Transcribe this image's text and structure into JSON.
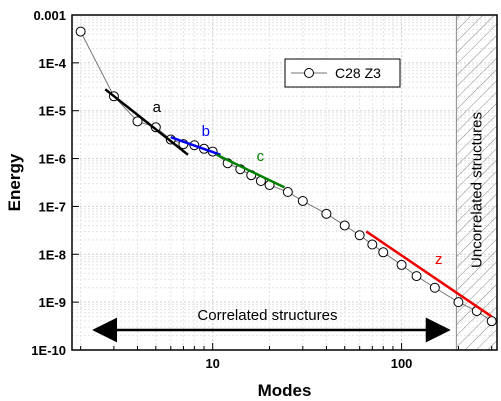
{
  "chart_data": {
    "type": "scatter",
    "xlabel": "Modes",
    "ylabel": "Energy",
    "xscale": "log",
    "yscale": "log",
    "xlim": [
      1.8,
      320
    ],
    "ylim": [
      1e-10,
      0.001
    ],
    "grid": true,
    "x_ticks": [
      {
        "value": 10,
        "label": "10"
      },
      {
        "value": 100,
        "label": "100"
      }
    ],
    "y_ticks": [
      {
        "value": 0.001,
        "label": "0.001"
      },
      {
        "value": 0.0001,
        "label": "1E-4"
      },
      {
        "value": 1e-05,
        "label": "1E-5"
      },
      {
        "value": 1e-06,
        "label": "1E-6"
      },
      {
        "value": 1e-07,
        "label": "1E-7"
      },
      {
        "value": 1e-08,
        "label": "1E-8"
      },
      {
        "value": 1e-09,
        "label": "1E-9"
      },
      {
        "value": 1e-10,
        "label": "1E-10"
      }
    ],
    "legend": {
      "position": "top-right",
      "entries": [
        "C28 Z3"
      ]
    },
    "series": [
      {
        "name": "C28 Z3",
        "style": "line-with-open-circles",
        "color": "#000000",
        "x": [
          2,
          3,
          4,
          5,
          6,
          7,
          8,
          9,
          10,
          12,
          14,
          16,
          18,
          20,
          25,
          30,
          40,
          50,
          60,
          70,
          80,
          100,
          120,
          150,
          200,
          250,
          300
        ],
        "y": [
          0.00045,
          2e-05,
          6e-06,
          4.5e-06,
          2.5e-06,
          2e-06,
          1.9e-06,
          1.6e-06,
          1.4e-06,
          8e-07,
          6e-07,
          4.5e-07,
          3.4e-07,
          2.8e-07,
          2e-07,
          1.3e-07,
          7e-08,
          4e-08,
          2.5e-08,
          1.6e-08,
          1.1e-08,
          6e-09,
          3.5e-09,
          2e-09,
          1e-09,
          6.5e-10,
          4e-10
        ]
      }
    ],
    "fits": [
      {
        "label": "a",
        "color": "#000000",
        "x": [
          2.7,
          7.4
        ],
        "y": [
          2.8e-05,
          1.2e-06
        ]
      },
      {
        "label": "b",
        "color": "#0000ee",
        "x": [
          6,
          11
        ],
        "y": [
          2.8e-06,
          1.2e-06
        ]
      },
      {
        "label": "c",
        "color": "#008000",
        "x": [
          10.5,
          24
        ],
        "y": [
          1.2e-06,
          2.5e-07
        ]
      },
      {
        "label": "z",
        "color": "#ee0000",
        "x": [
          65,
          300
        ],
        "y": [
          3e-08,
          5e-10
        ]
      }
    ],
    "regions": [
      {
        "label": "Correlated structures",
        "x": [
          2,
          190
        ],
        "type": "arrow"
      },
      {
        "label": "Uncorrelated structures",
        "x": [
          195,
          320
        ],
        "type": "hatched"
      }
    ]
  }
}
